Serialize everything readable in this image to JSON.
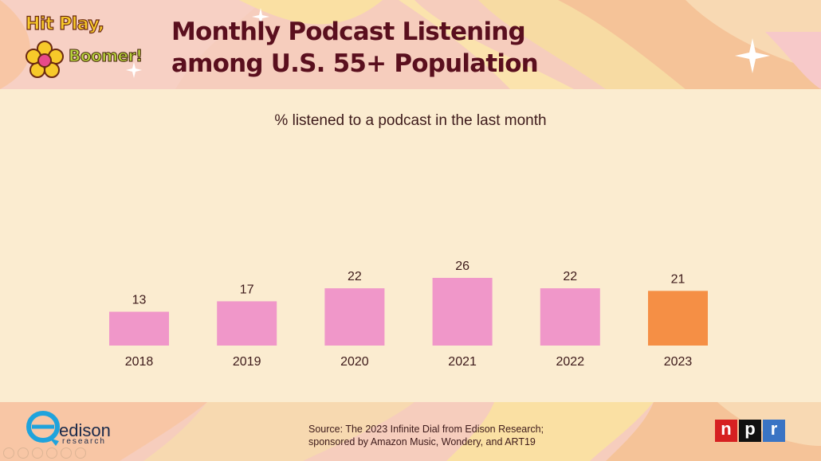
{
  "branding": {
    "hit_play": "Hit Play,",
    "boomer": "Boomer!",
    "edison_word": "edison",
    "edison_sub": "research",
    "npr": [
      "n",
      "p",
      "r"
    ]
  },
  "header": {
    "title_line1": "Monthly Podcast Listening",
    "title_line2": "among U.S. 55+ Population"
  },
  "footer": {
    "source_line1": "Source: The 2023 Infinite Dial from Edison Research;",
    "source_line2": "sponsored by Amazon Music, Wondery, and ART19"
  },
  "colors": {
    "bar_default": "#f097c9",
    "bar_highlight": "#f58f45",
    "title": "#5a0f1e",
    "text": "#3d1a1a"
  },
  "chart_data": {
    "type": "bar",
    "title": "% listened to a podcast in the last month",
    "categories": [
      "2018",
      "2019",
      "2020",
      "2021",
      "2022",
      "2023"
    ],
    "values": [
      13,
      17,
      22,
      26,
      22,
      21
    ],
    "highlight_index": 5,
    "xlabel": "",
    "ylabel": "",
    "ylim": [
      0,
      26
    ],
    "grid": false,
    "legend": "none"
  }
}
